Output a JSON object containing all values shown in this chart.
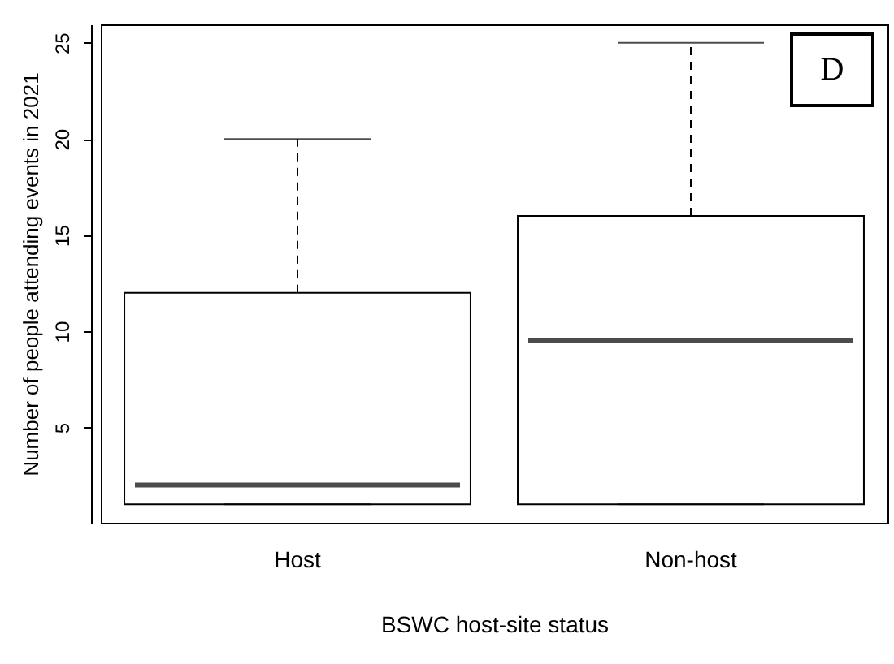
{
  "chart_data": {
    "type": "box",
    "xlabel": "BSWC host-site status",
    "ylabel": "Number of people attending events in 2021",
    "categories": [
      "Host",
      "Non-host"
    ],
    "boxes": [
      {
        "low": 1,
        "q1": 1,
        "median": 2,
        "q3": 12,
        "high": 20
      },
      {
        "low": 1,
        "q1": 1,
        "median": 9.5,
        "q3": 16,
        "high": 25
      }
    ],
    "ylim": [
      0.04,
      25.96
    ],
    "yticks": [
      5,
      10,
      15,
      20,
      25
    ],
    "grid": false,
    "annotations": [
      "D"
    ]
  }
}
